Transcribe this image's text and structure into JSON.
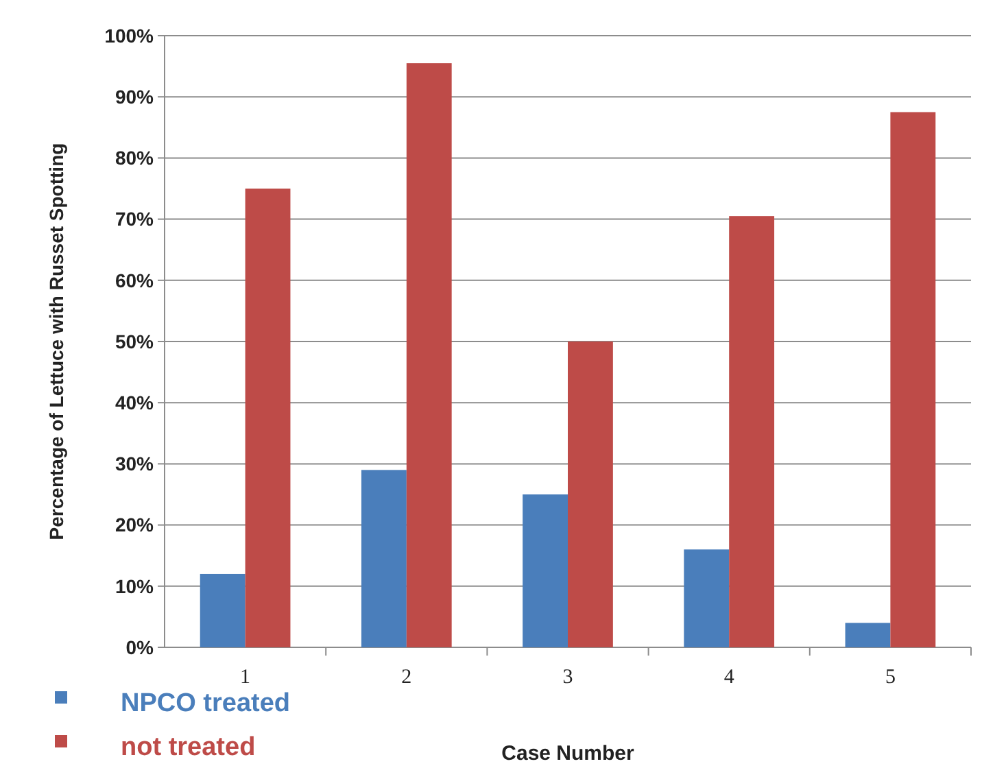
{
  "chart_data": {
    "type": "bar",
    "xlabel": "Case Number",
    "ylabel": "Percentage of Lettuce with Russet Spotting",
    "categories": [
      "1",
      "2",
      "3",
      "4",
      "5"
    ],
    "series": [
      {
        "name": "NPCO treated",
        "color": "#4a7ebb",
        "values": [
          12,
          29,
          25,
          16,
          4
        ]
      },
      {
        "name": "not treated",
        "color": "#be4b48",
        "values": [
          75,
          95.5,
          50,
          70.5,
          87.5
        ]
      }
    ],
    "ylim": [
      0,
      100
    ],
    "yticks": [
      {
        "value": 0,
        "label": "0%"
      },
      {
        "value": 10,
        "label": "10%"
      },
      {
        "value": 20,
        "label": "20%"
      },
      {
        "value": 30,
        "label": "30%"
      },
      {
        "value": 40,
        "label": "40%"
      },
      {
        "value": 50,
        "label": "50%"
      },
      {
        "value": 60,
        "label": "60%"
      },
      {
        "value": 70,
        "label": "70%"
      },
      {
        "value": 80,
        "label": "80%"
      },
      {
        "value": 90,
        "label": "90%"
      },
      {
        "value": 100,
        "label": "100%"
      }
    ],
    "grid": "y",
    "legend": "bottom left"
  }
}
